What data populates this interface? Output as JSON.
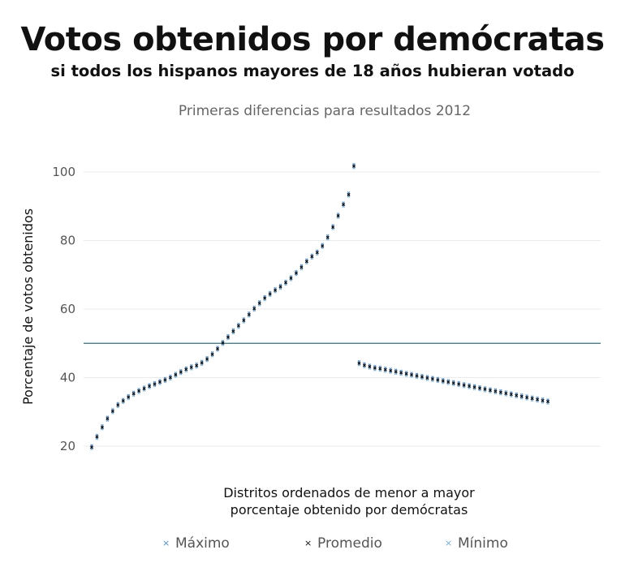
{
  "header": {
    "title": "Votos obtenidos por demócratas",
    "subtitle": "si todos los hispanos mayores de 18 años  hubieran votado"
  },
  "chart_data": {
    "type": "scatter",
    "title": "Primeras diferencias para resultados 2012",
    "xlabel_lines": [
      "Distritos ordenados de menor a mayor",
      "porcentaje obtenido por demócratas"
    ],
    "ylabel": "Porcentaje de votos obtenidos",
    "ylim": [
      17,
      105
    ],
    "yticks": [
      20,
      40,
      60,
      80,
      100
    ],
    "grid": true,
    "reference_line": {
      "y": 50,
      "color": "#2f6f7e"
    },
    "legend_position": "bottom",
    "x": [
      0,
      5,
      10,
      15,
      20,
      25,
      30,
      35,
      40,
      45,
      50,
      55,
      60,
      65,
      70,
      75,
      80,
      85,
      90,
      95,
      100,
      105,
      110,
      115,
      120,
      125,
      130,
      135,
      140,
      145,
      150,
      155,
      160,
      165,
      170,
      175,
      180,
      185,
      190,
      195,
      200,
      205,
      210,
      215,
      220,
      225,
      230,
      235,
      240,
      245,
      250,
      255,
      260,
      265,
      270,
      275,
      280,
      285,
      290,
      295,
      300,
      305,
      310,
      315,
      320,
      325,
      330,
      335,
      340,
      345,
      350,
      355,
      360,
      365,
      370,
      375,
      380,
      385,
      390,
      395,
      400,
      405,
      410,
      415,
      420,
      425,
      430,
      435
    ],
    "series": [
      {
        "name": "Máximo",
        "color": "#4a90d9",
        "values": [
          20.2,
          23.2,
          26.0,
          28.5,
          30.7,
          32.5,
          33.7,
          34.8,
          35.8,
          36.6,
          37.3,
          38.0,
          38.6,
          39.2,
          39.8,
          40.5,
          41.3,
          42.1,
          42.9,
          43.5,
          44.0,
          44.8,
          45.9,
          47.3,
          48.9,
          50.6,
          52.3,
          54.0,
          55.6,
          57.2,
          58.9,
          60.6,
          62.2,
          63.7,
          64.9,
          66.0,
          67.0,
          68.2,
          69.5,
          71.0,
          72.7,
          74.4,
          75.8,
          77.0,
          78.9,
          81.4,
          84.4,
          87.7,
          91.0,
          93.9,
          102.2,
          44.7,
          44.1,
          43.7,
          43.3,
          43.1,
          42.8,
          42.5,
          42.2,
          41.9,
          41.6,
          41.3,
          41.0,
          40.7,
          40.4,
          40.1,
          39.8,
          39.5,
          39.2,
          38.9,
          38.6,
          38.3,
          38.0,
          37.7,
          37.4,
          37.1,
          36.8,
          36.5,
          36.2,
          35.9,
          35.6,
          35.3,
          35.0,
          34.7,
          34.4,
          34.1,
          33.8,
          33.5
        ]
      },
      {
        "name": "Promedio",
        "color": "#111111",
        "values": [
          19.7,
          22.7,
          25.5,
          28.0,
          30.2,
          32.0,
          33.2,
          34.3,
          35.3,
          36.1,
          36.8,
          37.5,
          38.1,
          38.7,
          39.3,
          40.0,
          40.8,
          41.6,
          42.4,
          43.0,
          43.5,
          44.3,
          45.4,
          46.8,
          48.4,
          50.1,
          51.8,
          53.5,
          55.1,
          56.7,
          58.4,
          60.1,
          61.7,
          63.2,
          64.4,
          65.5,
          66.5,
          67.7,
          69.0,
          70.5,
          72.2,
          73.9,
          75.3,
          76.5,
          78.4,
          80.9,
          83.9,
          87.2,
          90.5,
          93.4,
          101.7,
          44.2,
          43.6,
          43.2,
          42.8,
          42.6,
          42.3,
          42.0,
          41.7,
          41.4,
          41.1,
          40.8,
          40.5,
          40.2,
          39.9,
          39.6,
          39.3,
          39.0,
          38.7,
          38.4,
          38.1,
          37.8,
          37.5,
          37.2,
          36.9,
          36.6,
          36.3,
          36.0,
          35.7,
          35.4,
          35.1,
          34.8,
          34.5,
          34.2,
          33.9,
          33.6,
          33.3,
          33.0
        ]
      },
      {
        "name": "Mínimo",
        "color": "#6aaee6",
        "values": [
          19.2,
          22.2,
          25.0,
          27.5,
          29.7,
          31.5,
          32.7,
          33.8,
          34.8,
          35.6,
          36.3,
          37.0,
          37.6,
          38.2,
          38.8,
          39.5,
          40.3,
          41.1,
          41.9,
          42.5,
          43.0,
          43.8,
          44.9,
          46.3,
          47.9,
          49.6,
          51.3,
          53.0,
          54.6,
          56.2,
          57.9,
          59.6,
          61.2,
          62.7,
          63.9,
          65.0,
          66.0,
          67.2,
          68.5,
          70.0,
          71.7,
          73.4,
          74.8,
          76.0,
          77.9,
          80.4,
          83.4,
          86.7,
          90.0,
          92.9,
          101.2,
          43.7,
          43.1,
          42.7,
          42.3,
          42.1,
          41.8,
          41.5,
          41.2,
          40.9,
          40.6,
          40.3,
          40.0,
          39.7,
          39.4,
          39.1,
          38.8,
          38.5,
          38.2,
          37.9,
          37.6,
          37.3,
          37.0,
          36.7,
          36.4,
          36.1,
          35.8,
          35.5,
          35.2,
          34.9,
          34.6,
          34.3,
          34.0,
          33.7,
          33.4,
          33.1,
          32.8,
          32.5
        ]
      }
    ]
  }
}
